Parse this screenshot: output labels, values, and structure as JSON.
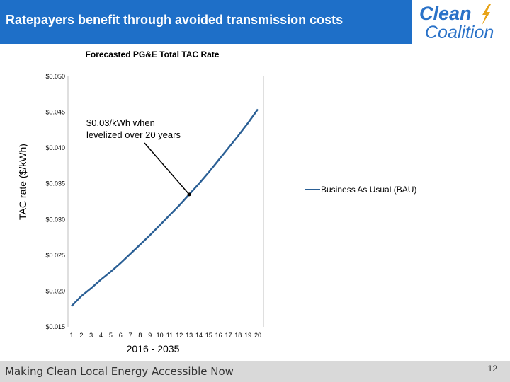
{
  "slide": {
    "title": "Ratepayers benefit through avoided transmission costs",
    "footer_text": "Making Clean Local Energy Accessible Now",
    "page_number": "12"
  },
  "logo": {
    "line1": "Clean",
    "line2": "Coalition",
    "color": "#2a72c8",
    "icon": "lightning-bolt-icon"
  },
  "colors": {
    "header_bg": "#1e6fc8",
    "series_line": "#2a5f95",
    "footer_bg": "#d9d9d9"
  },
  "chart_data": {
    "type": "line",
    "title": "Forecasted PG&E Total TAC Rate",
    "xlabel": "2016 - 2035",
    "ylabel": "TAC rate ($/kWh)",
    "x": [
      1,
      2,
      3,
      4,
      5,
      6,
      7,
      8,
      9,
      10,
      11,
      12,
      13,
      14,
      15,
      16,
      17,
      18,
      19,
      20
    ],
    "x_tick_labels": [
      "1",
      "2",
      "3",
      "4",
      "5",
      "6",
      "7",
      "8",
      "9",
      "10",
      "11",
      "12",
      "13",
      "14",
      "15",
      "16",
      "17",
      "18",
      "19",
      "20"
    ],
    "ylim": [
      0.015,
      0.05
    ],
    "y_ticks": [
      0.015,
      0.02,
      0.025,
      0.03,
      0.035,
      0.04,
      0.045,
      0.05
    ],
    "y_tick_labels": [
      "$0.015",
      "$0.020",
      "$0.025",
      "$0.030",
      "$0.035",
      "$0.040",
      "$0.045",
      "$0.050"
    ],
    "series": [
      {
        "name": "Business As Usual (BAU)",
        "values": [
          0.0179,
          0.0193,
          0.0204,
          0.0216,
          0.0227,
          0.0239,
          0.0252,
          0.0265,
          0.0278,
          0.0292,
          0.0306,
          0.032,
          0.0335,
          0.035,
          0.0366,
          0.0383,
          0.04,
          0.0417,
          0.0435,
          0.0454
        ]
      }
    ],
    "legend_position": "right",
    "grid": false,
    "annotation": {
      "text_line1": "$0.03/kWh when",
      "text_line2": "levelized over 20 years",
      "point_x": 13,
      "point_y": 0.0335
    }
  }
}
